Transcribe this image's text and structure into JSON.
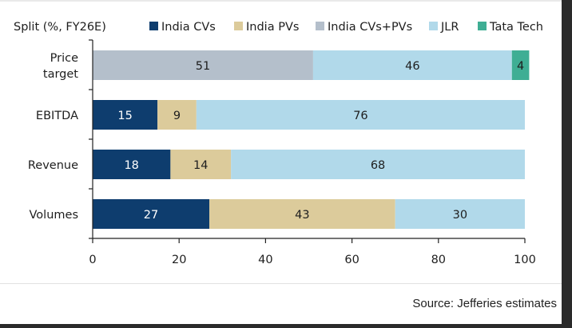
{
  "chart_data": {
    "type": "bar",
    "orientation": "horizontal",
    "stacked": true,
    "title": "Split (%, FY26E)",
    "xlabel": "",
    "ylabel": "",
    "xlim": [
      0,
      100
    ],
    "xticks": [
      0,
      20,
      40,
      60,
      80,
      100
    ],
    "grid": false,
    "legend_position": "top",
    "categories": [
      "Price target",
      "EBITDA",
      "Revenue",
      "Volumes"
    ],
    "category_lines": [
      [
        "Price",
        "target"
      ],
      [
        "EBITDA"
      ],
      [
        "Revenue"
      ],
      [
        "Volumes"
      ]
    ],
    "series": [
      {
        "name": "India CVs",
        "color": "#0e3d6e",
        "label_color": "#ffffff",
        "values": [
          null,
          15,
          18,
          27
        ]
      },
      {
        "name": "India PVs",
        "color": "#dccb9b",
        "label_color": "#1e1e1e",
        "values": [
          null,
          9,
          14,
          43
        ]
      },
      {
        "name": "India CVs+PVs",
        "color": "#b4bfcb",
        "label_color": "#1e1e1e",
        "values": [
          51,
          null,
          null,
          null
        ]
      },
      {
        "name": "JLR",
        "color": "#b1d9ea",
        "label_color": "#1e1e1e",
        "values": [
          46,
          76,
          68,
          30
        ]
      },
      {
        "name": "Tata Tech",
        "color": "#3fae94",
        "label_color": "#1e1e1e",
        "values": [
          4,
          null,
          null,
          null
        ]
      }
    ]
  },
  "source": "Source: Jefferies estimates"
}
